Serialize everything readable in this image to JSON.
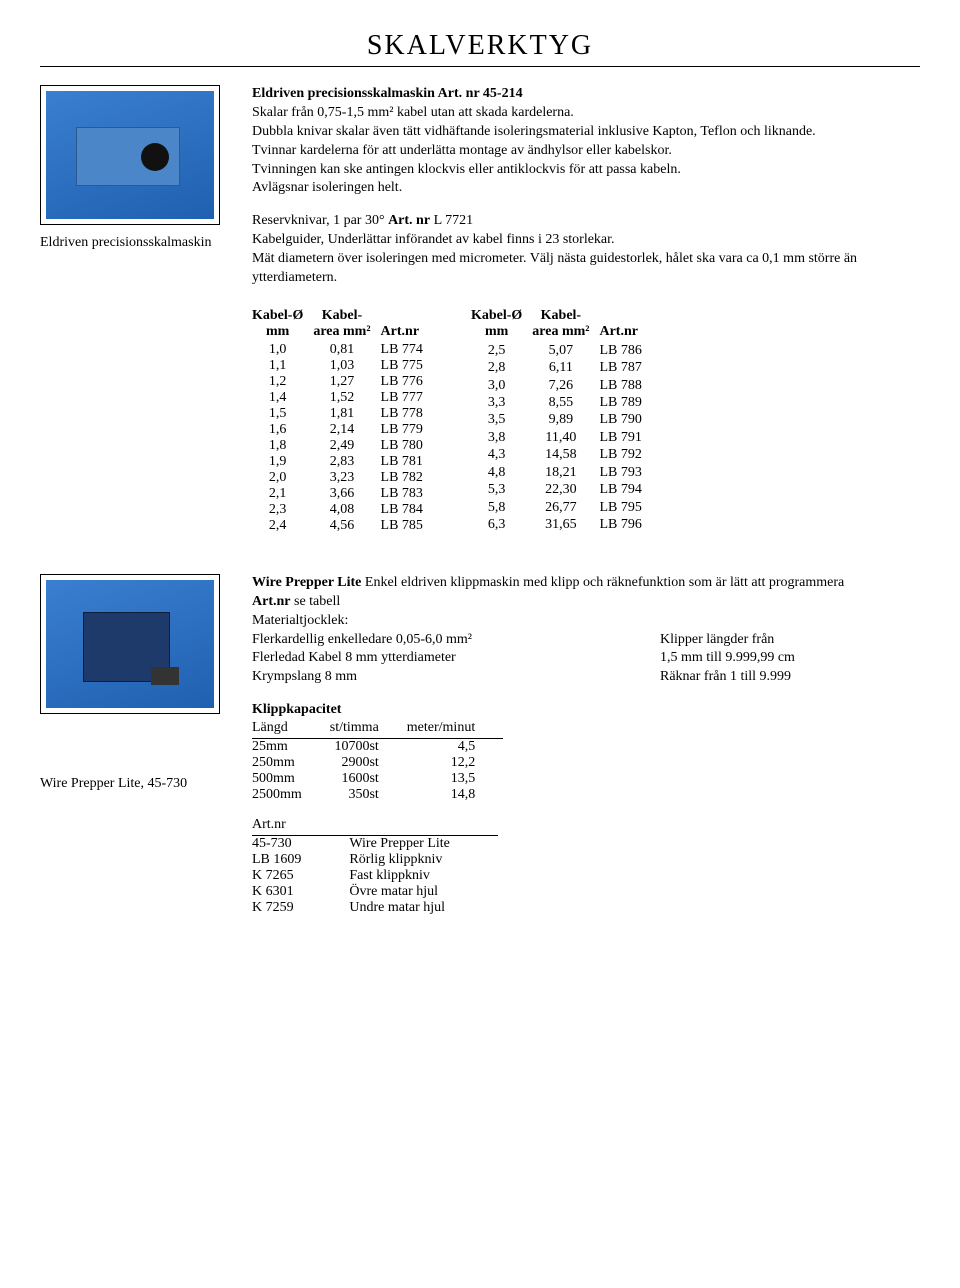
{
  "page": {
    "title": "SKALVERKTYG"
  },
  "product1": {
    "caption": "Eldriven precisionsskalmaskin",
    "heading_bold": "Eldriven precisionsskalmaskin Art. nr 45-214",
    "line1": "Skalar från 0,75-1,5 mm² kabel utan att skada kardelerna.",
    "line2": "Dubbla knivar skalar även tätt vidhäftande isoleringsmaterial inklusive Kapton, Teflon och liknande.",
    "line3": "Tvinnar kardelerna för att underlätta montage av ändhylsor eller kabelskor.",
    "line4": "Tvinningen kan ske antingen klockvis eller antiklockvis för att passa kabeln.",
    "line5": "Avlägsnar isoleringen helt.",
    "reserve_prefix": "Reservknivar, 1 par 30° ",
    "reserve_bold": "Art. nr",
    "reserve_suffix": " L 7721",
    "guide_line1": "Kabelguider, Underlättar införandet av kabel finns i 23 storlekar.",
    "guide_line2": "Mät diametern över isoleringen med micrometer. Välj nästa guidestorlek, hålet ska vara ca 0,1 mm större än ytterdiametern."
  },
  "table_headers": {
    "col1a": "Kabel-Ø",
    "col1b": "mm",
    "col2a": "Kabel-",
    "col2b": "area mm²",
    "col3": "Art.nr"
  },
  "table_left": [
    {
      "d": "1,0",
      "a": "0,81",
      "n": "LB 774"
    },
    {
      "d": "1,1",
      "a": "1,03",
      "n": "LB 775"
    },
    {
      "d": "1,2",
      "a": "1,27",
      "n": "LB 776"
    },
    {
      "d": "1,4",
      "a": "1,52",
      "n": "LB 777"
    },
    {
      "d": "1,5",
      "a": "1,81",
      "n": "LB 778"
    },
    {
      "d": "1,6",
      "a": "2,14",
      "n": "LB 779"
    },
    {
      "d": "1,8",
      "a": "2,49",
      "n": "LB 780"
    },
    {
      "d": "1,9",
      "a": "2,83",
      "n": "LB 781"
    },
    {
      "d": "2,0",
      "a": "3,23",
      "n": "LB 782"
    },
    {
      "d": "2,1",
      "a": "3,66",
      "n": "LB 783"
    },
    {
      "d": "2,3",
      "a": "4,08",
      "n": "LB 784"
    },
    {
      "d": "2,4",
      "a": "4,56",
      "n": "LB 785"
    }
  ],
  "table_right": [
    {
      "d": "2,5",
      "a": "5,07",
      "n": "LB 786"
    },
    {
      "d": "2,8",
      "a": "6,11",
      "n": "LB 787"
    },
    {
      "d": "3,0",
      "a": "7,26",
      "n": "LB 788"
    },
    {
      "d": "3,3",
      "a": "8,55",
      "n": "LB 789"
    },
    {
      "d": "3,5",
      "a": "9,89",
      "n": "LB 790"
    },
    {
      "d": "3,8",
      "a": "11,40",
      "n": "LB 791"
    },
    {
      "d": "4,3",
      "a": "14,58",
      "n": "LB 792"
    },
    {
      "d": "4,8",
      "a": "18,21",
      "n": "LB 793"
    },
    {
      "d": "5,3",
      "a": "22,30",
      "n": "LB 794"
    },
    {
      "d": "5,8",
      "a": "26,77",
      "n": "LB 795"
    },
    {
      "d": "6,3",
      "a": "31,65",
      "n": "LB 796"
    }
  ],
  "product2": {
    "caption": "Wire Prepper Lite, 45-730",
    "heading_bold": "Wire Prepper Lite",
    "heading_rest": " Enkel eldriven klippmaskin med klipp och räknefunktion som är lätt att programmera",
    "artnr_label": "Art.nr",
    "artnr_suffix": " se tabell",
    "mat_label": "Materialtjocklek:",
    "left_col": {
      "r1": "Flerkardellig enkelledare 0,05-6,0 mm²",
      "r2": "Flerledad Kabel 8 mm ytterdiameter",
      "r3": "Krympslang 8 mm"
    },
    "right_col": {
      "r1": "Klipper längder från",
      "r2": "1,5 mm till 9.999,99 cm",
      "r3": "Räknar från 1 till 9.999"
    },
    "kap_title": "Klippkapacitet",
    "kap_headers": {
      "h1": "Längd",
      "h2": "st/timma",
      "h3": "meter/minut"
    },
    "kap_rows": [
      {
        "l": "25mm",
        "s": "10700st",
        "m": "4,5"
      },
      {
        "l": "250mm",
        "s": "2900st",
        "m": "12,2"
      },
      {
        "l": "500mm",
        "s": "1600st",
        "m": "13,5"
      },
      {
        "l": "2500mm",
        "s": "350st",
        "m": "14,8"
      }
    ],
    "art_header": "Art.nr",
    "art_rows": [
      {
        "a": "45-730",
        "d": "Wire Prepper Lite"
      },
      {
        "a": "LB 1609",
        "d": "Rörlig klippkniv"
      },
      {
        "a": "K 7265",
        "d": "Fast klippkniv"
      },
      {
        "a": "K 6301",
        "d": "Övre matar hjul"
      },
      {
        "a": "K 7259",
        "d": "Undre matar hjul"
      }
    ]
  }
}
